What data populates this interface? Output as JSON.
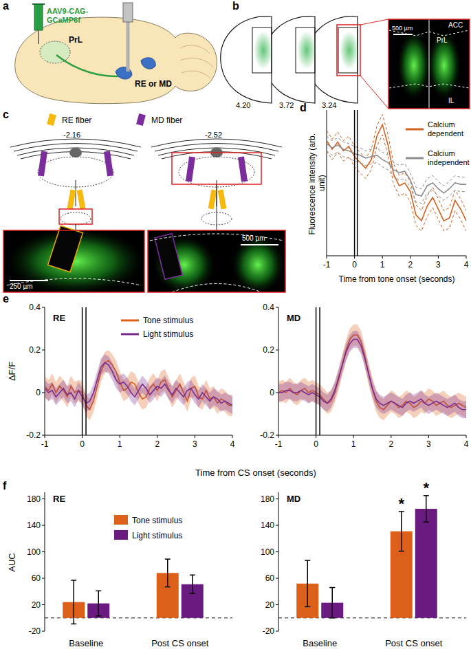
{
  "panel_labels": [
    "a",
    "b",
    "c",
    "d",
    "e",
    "f"
  ],
  "diagram_a": {
    "virus": "AAV9-CAG-GCaMP6f",
    "region": "PrL",
    "target": "RE or MD"
  },
  "diagram_b": {
    "sections": [
      "4.20",
      "3.72",
      "3.24"
    ],
    "inset_labels": [
      "ACC",
      "PrL",
      "IL"
    ],
    "scale_bar": "500 µm"
  },
  "diagram_c": {
    "legend": [
      {
        "name": "RE fiber",
        "color": "#f5b90f"
      },
      {
        "name": "MD fiber",
        "color": "#7b2d9b"
      }
    ],
    "sections": [
      "-2.16",
      "-2.52"
    ],
    "scale_bars": [
      "250 µm",
      "500 µm"
    ]
  },
  "chart_data": [
    {
      "type": "line",
      "x_label": "Time from tone onset (seconds)",
      "y_label": "Fluorescence intensity (arb. unit)",
      "tick_labels": "x",
      "legend": "upper right",
      "x": [
        -1,
        -0.8,
        -0.6,
        -0.4,
        -0.2,
        0,
        0.2,
        0.4,
        0.6,
        0.8,
        1,
        1.2,
        1.4,
        1.6,
        1.8,
        2,
        2.2,
        2.4,
        2.6,
        2.8,
        3,
        3.2,
        3.4,
        3.6,
        3.8,
        4
      ],
      "xlim": [
        -1,
        4
      ],
      "xticks": [
        -1,
        0,
        1,
        2,
        3,
        4
      ],
      "ylim": [
        0,
        10
      ],
      "vlines": [
        0,
        0.1
      ],
      "series": [
        {
          "name": "Calcium dependent",
          "color": "#d2601f",
          "line_style": "solid",
          "values": [
            7.9,
            7.3,
            7.8,
            7.2,
            7.5,
            6.8,
            6.4,
            6.0,
            6.6,
            8.2,
            9.0,
            7.6,
            5.6,
            4.8,
            5.0,
            4.4,
            2.8,
            2.4,
            3.4,
            4.0,
            3.2,
            2.4,
            2.6,
            3.8,
            3.2,
            2.4
          ],
          "error": [
            0.7,
            0.7,
            0.7,
            0.7,
            0.7,
            0.7,
            0.7,
            0.7,
            0.7,
            0.7,
            0.7,
            0.7,
            0.7,
            0.7,
            0.7,
            0.7,
            0.7,
            0.7,
            0.7,
            0.7,
            0.7,
            0.7,
            0.7,
            0.7,
            0.7,
            0.7
          ]
        },
        {
          "name": "Calcium independent",
          "color": "#8c8c8c",
          "line_style": "solid",
          "values": [
            7.7,
            7.4,
            7.6,
            7.3,
            7.2,
            7.0,
            6.9,
            6.7,
            6.8,
            6.9,
            6.6,
            6.4,
            5.9,
            5.7,
            5.8,
            5.2,
            4.2,
            4.1,
            4.8,
            5.0,
            4.6,
            4.3,
            4.6,
            5.0,
            4.9,
            4.9
          ],
          "error": [
            0.5,
            0.5,
            0.5,
            0.5,
            0.5,
            0.5,
            0.5,
            0.5,
            0.5,
            0.5,
            0.5,
            0.5,
            0.5,
            0.5,
            0.5,
            0.5,
            0.5,
            0.5,
            0.5,
            0.5,
            0.5,
            0.5,
            0.5,
            0.5,
            0.5,
            0.5
          ]
        }
      ]
    },
    {
      "type": "line",
      "title": "RE",
      "y_label": "ΔF/F",
      "x_label": "Time from CS onset (seconds)",
      "legend": "upper center",
      "x": [
        -1,
        -0.9,
        -0.8,
        -0.7,
        -0.6,
        -0.5,
        -0.4,
        -0.3,
        -0.2,
        -0.1,
        0,
        0.1,
        0.2,
        0.3,
        0.4,
        0.5,
        0.6,
        0.7,
        0.8,
        0.9,
        1,
        1.1,
        1.2,
        1.3,
        1.4,
        1.5,
        1.6,
        1.7,
        1.8,
        1.9,
        2,
        2.1,
        2.2,
        2.3,
        2.4,
        2.5,
        2.6,
        2.7,
        2.8,
        2.9,
        3,
        3.1,
        3.2,
        3.3,
        3.4,
        3.5,
        3.6,
        3.7,
        3.8,
        3.9,
        4
      ],
      "xlim": [
        -1,
        4
      ],
      "xticks": [
        -1,
        0,
        1,
        2,
        3,
        4
      ],
      "ylim": [
        -0.2,
        0.4
      ],
      "yticks": [
        -0.2,
        0,
        0.2,
        0.4
      ],
      "vlines": [
        0,
        0.1
      ],
      "series": [
        {
          "name": "Tone stimulus",
          "color": "#dc5f1a",
          "values": [
            0.03,
            0.01,
            0.04,
            0,
            0.03,
            0.01,
            -0.02,
            0.03,
            0,
            0.01,
            0,
            -0.06,
            -0.08,
            -0.04,
            0.03,
            0.1,
            0.14,
            0.15,
            0.13,
            0.1,
            0.05,
            0.01,
            0.02,
            0.05,
            0.04,
            0,
            -0.03,
            -0.02,
            0.02,
            0.04,
            0.01,
            0.05,
            0.06,
            0.02,
            -0.02,
            0.01,
            0.04,
            0,
            -0.04,
            0.02,
            0.03,
            -0.02,
            -0.03,
            0.01,
            -0.03,
            -0.02,
            -0.05,
            -0.03,
            -0.04,
            -0.06,
            -0.06
          ],
          "error": [
            0.05,
            0.05,
            0.05,
            0.05,
            0.05,
            0.05,
            0.05,
            0.05,
            0.05,
            0.05,
            0.05,
            0.05,
            0.05,
            0.05,
            0.05,
            0.05,
            0.05,
            0.05,
            0.05,
            0.05,
            0.05,
            0.05,
            0.05,
            0.05,
            0.05,
            0.05,
            0.05,
            0.05,
            0.05,
            0.05,
            0.05,
            0.05,
            0.05,
            0.05,
            0.05,
            0.05,
            0.05,
            0.05,
            0.05,
            0.05,
            0.05,
            0.05,
            0.05,
            0.05,
            0.05,
            0.05,
            0.05,
            0.05,
            0.05,
            0.05,
            0.05
          ]
        },
        {
          "name": "Light stimulus",
          "color": "#7a2b8e",
          "values": [
            0.02,
            0,
            0.01,
            -0.02,
            0,
            0.02,
            -0.01,
            0,
            -0.03,
            0.01,
            -0.02,
            -0.05,
            -0.04,
            0,
            0.06,
            0.12,
            0.14,
            0.13,
            0.1,
            0.06,
            0.04,
            0.05,
            0.03,
            0,
            -0.02,
            0.01,
            0.04,
            0.02,
            -0.01,
            0.01,
            0.03,
            0.02,
            0.04,
            0.01,
            -0.01,
            0.02,
            0,
            -0.02,
            0.01,
            0.02,
            -0.01,
            -0.03,
            0,
            -0.02,
            -0.04,
            -0.02,
            -0.03,
            -0.05,
            -0.04,
            -0.05,
            -0.06
          ],
          "error": [
            0.04,
            0.04,
            0.04,
            0.04,
            0.04,
            0.04,
            0.04,
            0.04,
            0.04,
            0.04,
            0.04,
            0.04,
            0.04,
            0.04,
            0.04,
            0.04,
            0.04,
            0.04,
            0.04,
            0.04,
            0.04,
            0.04,
            0.04,
            0.04,
            0.04,
            0.04,
            0.04,
            0.04,
            0.04,
            0.04,
            0.04,
            0.04,
            0.04,
            0.04,
            0.04,
            0.04,
            0.04,
            0.04,
            0.04,
            0.04,
            0.04,
            0.04,
            0.04,
            0.04,
            0.04,
            0.04,
            0.04,
            0.04,
            0.04,
            0.04,
            0.04
          ]
        }
      ]
    },
    {
      "type": "line",
      "title": "MD",
      "x": [
        -1,
        -0.9,
        -0.8,
        -0.7,
        -0.6,
        -0.5,
        -0.4,
        -0.3,
        -0.2,
        -0.1,
        0,
        0.1,
        0.2,
        0.3,
        0.4,
        0.5,
        0.6,
        0.7,
        0.8,
        0.9,
        1,
        1.1,
        1.2,
        1.3,
        1.4,
        1.5,
        1.6,
        1.7,
        1.8,
        1.9,
        2,
        2.1,
        2.2,
        2.3,
        2.4,
        2.5,
        2.6,
        2.7,
        2.8,
        2.9,
        3,
        3.1,
        3.2,
        3.3,
        3.4,
        3.5,
        3.6,
        3.7,
        3.8,
        3.9,
        4
      ],
      "xlim": [
        -1,
        4
      ],
      "xticks": [
        -1,
        0,
        1,
        2,
        3,
        4
      ],
      "ylim": [
        -0.2,
        0.4
      ],
      "yticks": [
        -0.2,
        0,
        0.2,
        0.4
      ],
      "vlines": [
        0,
        0.1
      ],
      "series": [
        {
          "color": "#dc5f1a",
          "values": [
            0,
            0.01,
            0,
            0.02,
            0,
            -0.01,
            0.01,
            0.02,
            0,
            0.01,
            0,
            -0.01,
            -0.03,
            -0.05,
            -0.04,
            0,
            0.06,
            0.13,
            0.2,
            0.25,
            0.27,
            0.27,
            0.24,
            0.17,
            0.09,
            0.02,
            -0.04,
            -0.07,
            -0.08,
            -0.06,
            -0.04,
            -0.05,
            -0.07,
            -0.06,
            -0.04,
            -0.05,
            -0.07,
            -0.06,
            -0.04,
            -0.05,
            -0.03,
            -0.04,
            -0.06,
            -0.05,
            -0.04,
            -0.06,
            -0.07,
            -0.06,
            -0.05,
            -0.06,
            -0.07
          ],
          "error": [
            0.05,
            0.05,
            0.05,
            0.05,
            0.05,
            0.05,
            0.05,
            0.05,
            0.05,
            0.05,
            0.05,
            0.05,
            0.05,
            0.05,
            0.05,
            0.05,
            0.05,
            0.05,
            0.05,
            0.05,
            0.05,
            0.05,
            0.05,
            0.05,
            0.05,
            0.05,
            0.05,
            0.05,
            0.05,
            0.05,
            0.05,
            0.05,
            0.05,
            0.05,
            0.05,
            0.05,
            0.05,
            0.05,
            0.05,
            0.05,
            0.05,
            0.05,
            0.05,
            0.05,
            0.05,
            0.05,
            0.05,
            0.05,
            0.05,
            0.05,
            0.05
          ]
        },
        {
          "color": "#7a2b8e",
          "values": [
            0,
            0,
            0.01,
            0.01,
            0,
            0,
            0.01,
            0,
            -0.01,
            0,
            -0.01,
            -0.02,
            -0.04,
            -0.05,
            -0.03,
            0.01,
            0.07,
            0.13,
            0.19,
            0.23,
            0.25,
            0.25,
            0.22,
            0.16,
            0.09,
            0.02,
            -0.03,
            -0.05,
            -0.06,
            -0.05,
            -0.04,
            -0.05,
            -0.06,
            -0.07,
            -0.05,
            -0.04,
            -0.05,
            -0.04,
            -0.03,
            -0.05,
            -0.06,
            -0.05,
            -0.04,
            -0.05,
            -0.06,
            -0.07,
            -0.06,
            -0.05,
            -0.07,
            -0.08,
            -0.08
          ],
          "error": [
            0.04,
            0.04,
            0.04,
            0.04,
            0.04,
            0.04,
            0.04,
            0.04,
            0.04,
            0.04,
            0.04,
            0.04,
            0.04,
            0.04,
            0.04,
            0.04,
            0.04,
            0.04,
            0.04,
            0.04,
            0.04,
            0.04,
            0.04,
            0.04,
            0.04,
            0.04,
            0.04,
            0.04,
            0.04,
            0.04,
            0.04,
            0.04,
            0.04,
            0.04,
            0.04,
            0.04,
            0.04,
            0.04,
            0.04,
            0.04,
            0.04,
            0.04,
            0.04,
            0.04,
            0.04,
            0.04,
            0.04,
            0.04,
            0.04,
            0.04,
            0.04
          ]
        }
      ]
    },
    {
      "type": "bar",
      "title": "RE",
      "y_label": "AUC",
      "legend": "upper center",
      "categories": [
        "Baseline",
        "Post CS onset"
      ],
      "ylim": [
        -20,
        190
      ],
      "yticks": [
        -20,
        20,
        60,
        100,
        140,
        180
      ],
      "hlines": [
        0
      ],
      "series": [
        {
          "name": "Tone stimulus",
          "color": "#dc5f1a",
          "values": [
            24,
            68
          ],
          "error": [
            33,
            21
          ]
        },
        {
          "name": "Light stimulus",
          "color": "#6a1b7f",
          "values": [
            22,
            51
          ],
          "error": [
            19,
            14
          ]
        }
      ]
    },
    {
      "type": "bar",
      "title": "MD",
      "categories": [
        "Baseline",
        "Post CS onset"
      ],
      "ylim": [
        -20,
        190
      ],
      "yticks": [
        -20,
        20,
        60,
        100,
        140,
        180
      ],
      "hlines": [
        0
      ],
      "series": [
        {
          "color": "#dc5f1a",
          "values": [
            52,
            131
          ],
          "error": [
            35,
            30
          ]
        },
        {
          "color": "#6a1b7f",
          "values": [
            23,
            165
          ],
          "error": [
            23,
            20
          ]
        }
      ],
      "annotations": [
        {
          "text": "*",
          "series": 0,
          "category": 1
        },
        {
          "text": "*",
          "series": 1,
          "category": 1
        }
      ]
    }
  ]
}
